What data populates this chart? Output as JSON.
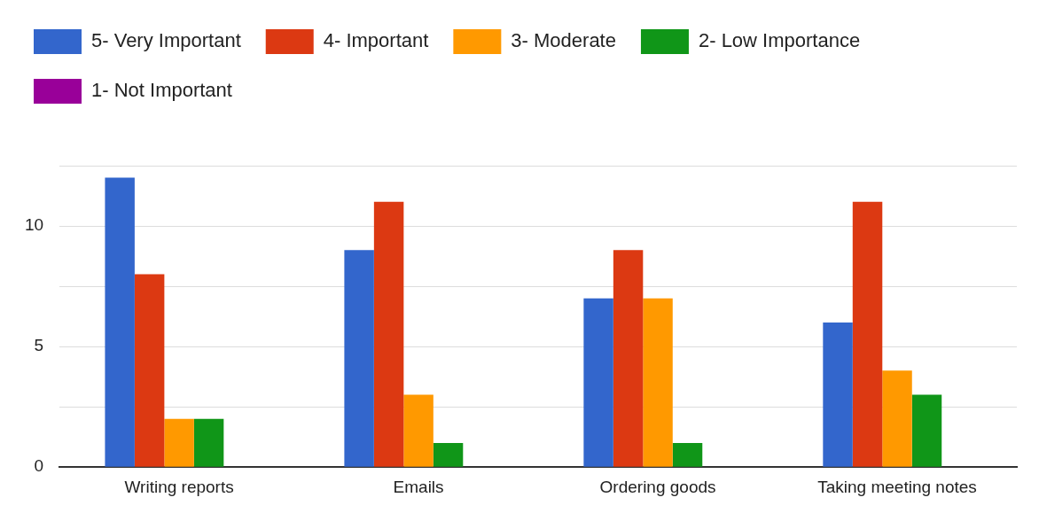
{
  "chart_data": {
    "type": "bar",
    "categories": [
      "Writing reports",
      "Emails",
      "Ordering goods",
      "Taking meeting notes"
    ],
    "series": [
      {
        "name": "5- Very Important",
        "color": "#3366cc",
        "values": [
          12,
          9,
          7,
          6
        ]
      },
      {
        "name": "4- Important",
        "color": "#dc3912",
        "values": [
          8,
          11,
          9,
          11
        ]
      },
      {
        "name": "3- Moderate",
        "color": "#ff9900",
        "values": [
          2,
          3,
          7,
          4
        ]
      },
      {
        "name": "2- Low Importance",
        "color": "#109618",
        "values": [
          2,
          1,
          1,
          3
        ]
      },
      {
        "name": "1- Not Important",
        "color": "#990099",
        "values": [
          0,
          0,
          0,
          0
        ]
      }
    ],
    "ylim": [
      0,
      12.5
    ],
    "yticks": [
      0,
      {
        "value": 2.5,
        "label": null
      },
      5,
      {
        "value": 7.5,
        "label": null
      },
      10,
      {
        "value": 12.5,
        "label": null
      }
    ],
    "grid": "y",
    "legend": "top"
  }
}
